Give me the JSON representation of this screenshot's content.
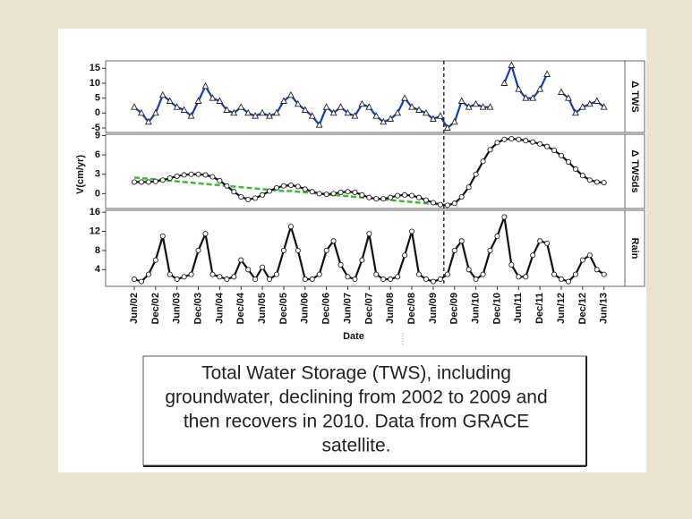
{
  "chart_data": [
    {
      "type": "line",
      "label": "Δ TWS",
      "ylim": [
        -6.5,
        17.5
      ],
      "yticks": [
        -5,
        0,
        5,
        10,
        15
      ],
      "series": [
        {
          "color": "#1a3aa8",
          "marker": "triangle",
          "values": [
            2,
            0,
            -3,
            0,
            6,
            4,
            2,
            1,
            -1,
            4,
            9,
            5,
            4,
            1,
            0,
            2,
            0,
            -1,
            0,
            -1,
            0,
            4,
            6,
            3,
            1,
            -1,
            -4,
            2,
            0,
            2,
            0,
            -1,
            3,
            2,
            -1,
            -3,
            -2,
            0,
            5,
            2,
            1,
            0,
            -2,
            -1,
            -5,
            -3,
            4,
            2,
            3,
            2,
            2,
            null,
            10,
            16,
            8,
            5,
            5,
            8,
            13,
            null,
            7,
            5,
            0,
            2,
            3,
            4,
            2
          ]
        }
      ]
    },
    {
      "type": "line",
      "label": "Δ TWSds",
      "ylabel": "V(cm/yr)",
      "ylim": [
        -2.3,
        9.2
      ],
      "yticks": [
        0,
        3,
        6,
        9
      ],
      "series": [
        {
          "color": "#3fb83f",
          "marker": "none",
          "dash": true,
          "values": [
            2.5,
            2.4,
            2.3,
            2.2,
            2.1,
            2.0,
            1.9,
            1.8,
            1.7,
            1.6,
            1.5,
            1.4,
            1.3,
            1.2,
            1.1,
            1.0,
            0.9,
            0.8,
            0.7,
            0.6,
            0.5,
            0.4,
            0.4,
            0.3,
            0.2,
            0.1,
            0.0,
            -0.1,
            -0.2,
            -0.3,
            -0.4,
            -0.5,
            -0.6,
            -0.7,
            -0.8,
            -0.9,
            -1.0,
            -1.1,
            -1.2,
            -1.3,
            -1.4,
            -1.5,
            -1.6,
            -1.7,
            -1.8,
            null,
            null,
            null,
            null,
            null,
            null,
            null,
            null,
            null,
            null,
            null,
            null,
            null,
            null,
            null,
            null,
            null,
            null,
            null,
            null,
            null,
            null
          ]
        },
        {
          "color": "#111111",
          "marker": "circle",
          "values": [
            1.8,
            1.8,
            1.8,
            1.9,
            2.1,
            2.4,
            2.7,
            2.9,
            3.0,
            3.0,
            2.9,
            2.6,
            2.0,
            1.2,
            0.3,
            -0.5,
            -0.9,
            -0.7,
            -0.2,
            0.4,
            0.9,
            1.2,
            1.3,
            1.1,
            0.7,
            0.3,
            0.0,
            -0.1,
            0.0,
            0.2,
            0.3,
            0.2,
            -0.2,
            -0.6,
            -0.8,
            -0.8,
            -0.6,
            -0.3,
            -0.2,
            -0.3,
            -0.6,
            -1.0,
            -1.4,
            -1.7,
            -1.8,
            -1.5,
            -0.5,
            1.0,
            3.0,
            5.0,
            6.8,
            7.9,
            8.4,
            8.5,
            8.4,
            8.2,
            8.0,
            7.7,
            7.3,
            6.7,
            5.9,
            4.9,
            3.8,
            2.8,
            2.1,
            1.8,
            1.7
          ]
        }
      ]
    },
    {
      "type": "line",
      "label": "Rain",
      "xlabel": "Date",
      "ylim": [
        0.5,
        16.4
      ],
      "yticks": [
        4,
        8,
        12,
        16
      ],
      "categories": [
        "Jun/02",
        null,
        null,
        "Dec/02",
        null,
        null,
        "Jun/03",
        null,
        null,
        "Dec/03",
        null,
        null,
        "Jun/04",
        null,
        null,
        "Dec/04",
        null,
        null,
        "Jun/05",
        null,
        null,
        "Dec/05",
        null,
        null,
        "Jun/06",
        null,
        null,
        "Dec/06",
        null,
        null,
        "Jun/07",
        null,
        null,
        "Dec/07",
        null,
        null,
        "Jun/08",
        null,
        null,
        "Dec/08",
        null,
        null,
        "Jun/09",
        null,
        null,
        "Dec/09",
        null,
        null,
        "Jun/10",
        null,
        null,
        "Dec/10",
        null,
        null,
        "Jun/11",
        null,
        null,
        "Dec/11",
        null,
        null,
        "Jun/12",
        null,
        null,
        "Dec/12",
        null,
        null,
        "Jun/13"
      ],
      "series": [
        {
          "color": "#111111",
          "marker": "circle",
          "values": [
            2,
            1.5,
            3,
            6,
            11,
            3,
            2,
            2.5,
            3,
            8,
            11.5,
            3,
            2.5,
            2,
            2.5,
            6,
            4,
            2,
            4.5,
            2,
            3,
            8,
            13,
            8,
            2,
            2,
            3,
            8,
            10,
            5,
            2.5,
            2,
            6,
            11.5,
            3,
            2,
            2,
            2.5,
            7,
            12,
            3,
            2,
            1.5,
            2,
            3,
            8,
            10,
            4,
            2,
            3,
            8,
            11,
            15,
            5,
            2.5,
            2.5,
            7,
            10,
            9.5,
            3,
            2,
            1.5,
            3,
            6,
            7,
            4,
            3
          ]
        }
      ]
    }
  ],
  "caption": [
    "Total Water Storage (TWS), including",
    "groundwater, declining from 2002 to 2009 and",
    "then recovers in 2010. Data from GRACE",
    "satellite."
  ]
}
